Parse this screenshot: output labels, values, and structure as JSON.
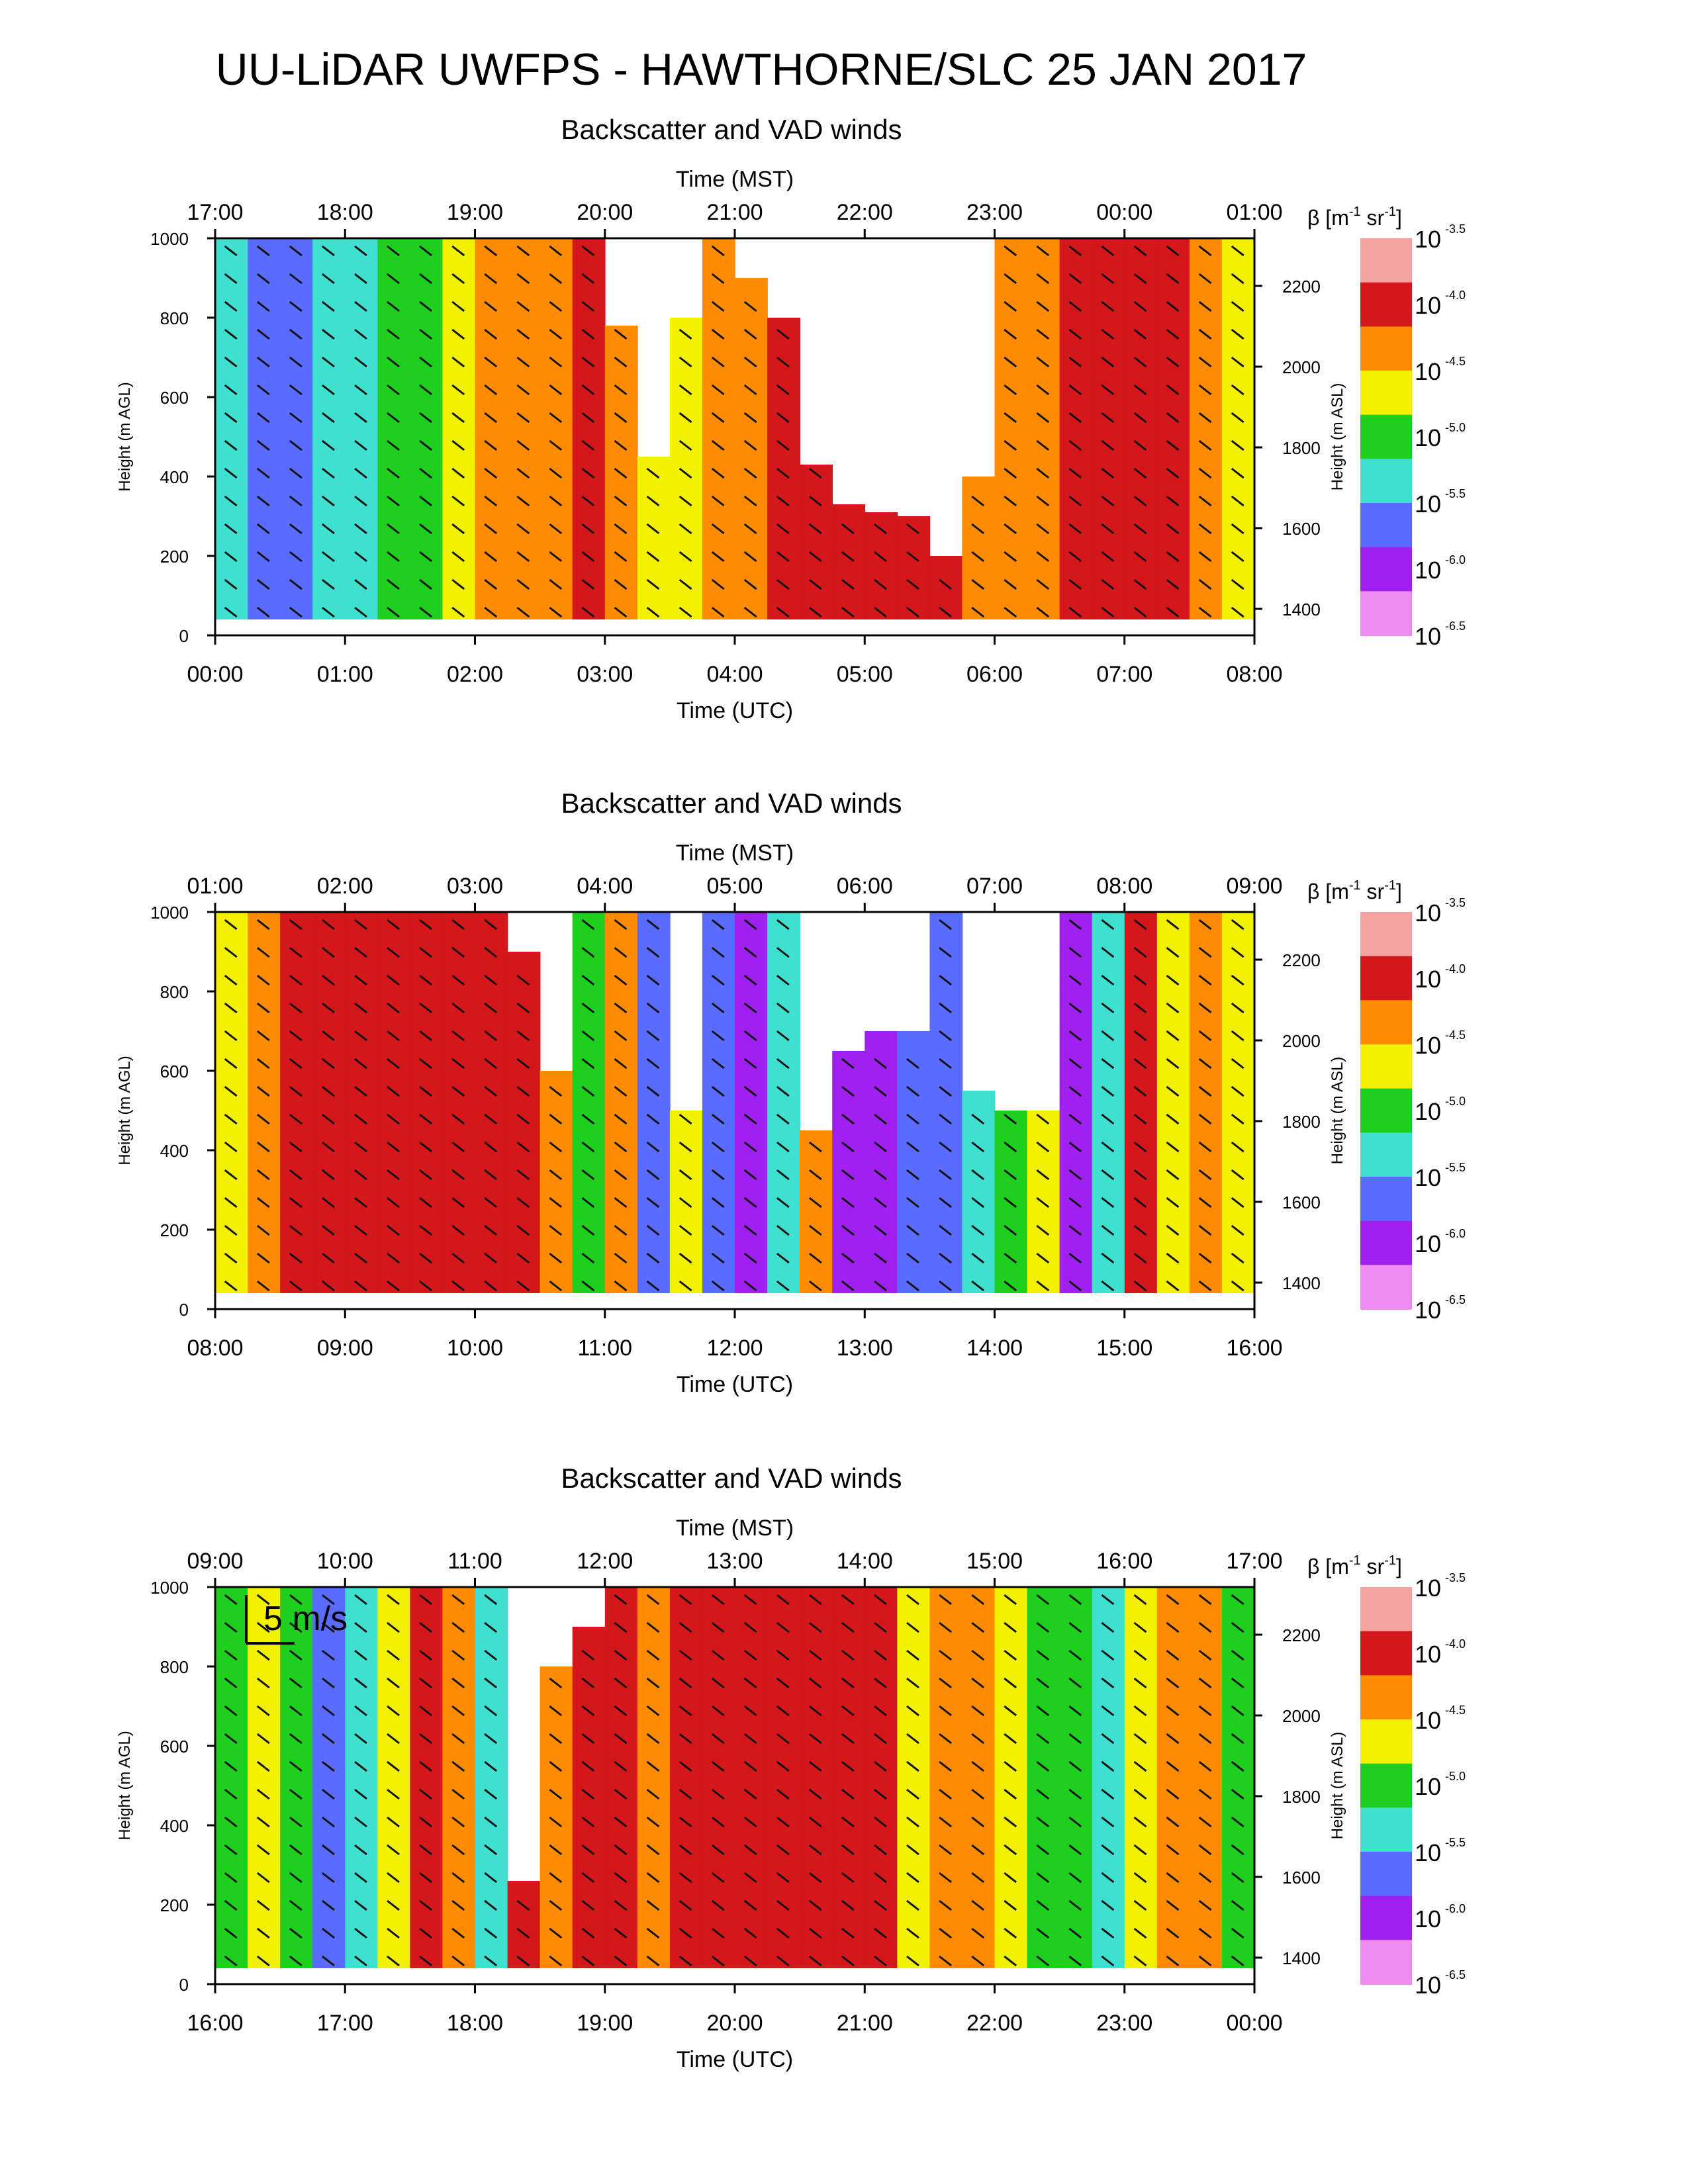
{
  "title": "UU-LiDAR UWFPS - HAWTHORNE/SLC 25 JAN 2017",
  "scale_arrow_label": "5 m/s",
  "colorbar": {
    "label_prefix": "β [m",
    "label_sup1": "-1",
    "label_mid": " sr",
    "label_sup2": "-1",
    "label_suffix": "]",
    "base": "10",
    "exponents": [
      "-3.5",
      "-4.0",
      "-4.5",
      "-5.0",
      "-5.5",
      "-6.0",
      "-6.5"
    ],
    "colors": [
      "#f4a3a0",
      "#d4171a",
      "#ff8c00",
      "#f2f200",
      "#1ecf1e",
      "#3fe0d0",
      "#5a6cff",
      "#a020f0",
      "#f08cf0"
    ]
  },
  "chart_data": [
    {
      "type": "heatmap",
      "title": "Backscatter and VAD winds",
      "xlabel": "Time (UTC)",
      "x2label": "Time (MST)",
      "ylabel": "Height (m AGL)",
      "y2label": "Height (m ASL)",
      "x_ticks": [
        "00:00",
        "01:00",
        "02:00",
        "03:00",
        "04:00",
        "05:00",
        "06:00",
        "07:00",
        "08:00"
      ],
      "x2_ticks": [
        "17:00",
        "18:00",
        "19:00",
        "20:00",
        "21:00",
        "22:00",
        "23:00",
        "00:00",
        "01:00"
      ],
      "y_ticks": [
        "0",
        "200",
        "400",
        "600",
        "800",
        "1000"
      ],
      "y2_ticks": [
        "1400",
        "1600",
        "1800",
        "2000",
        "2200"
      ],
      "ylim": [
        0,
        1000
      ],
      "grid": false,
      "columns": [
        {
          "x": 0.0,
          "top": 1000,
          "bottom": 40,
          "exp": -5.4
        },
        {
          "x": 0.25,
          "top": 1000,
          "bottom": 40,
          "exp": -5.6
        },
        {
          "x": 0.5,
          "top": 1000,
          "bottom": 40,
          "exp": -5.9
        },
        {
          "x": 0.75,
          "top": 1000,
          "bottom": 40,
          "exp": -5.5
        },
        {
          "x": 1.0,
          "top": 1000,
          "bottom": 40,
          "exp": -5.3
        },
        {
          "x": 1.25,
          "top": 1000,
          "bottom": 40,
          "exp": -5.1
        },
        {
          "x": 1.5,
          "top": 1000,
          "bottom": 40,
          "exp": -4.9
        },
        {
          "x": 1.75,
          "top": 1000,
          "bottom": 40,
          "exp": -4.5
        },
        {
          "x": 2.0,
          "top": 1000,
          "bottom": 40,
          "exp": -4.1
        },
        {
          "x": 2.25,
          "top": 1000,
          "bottom": 40,
          "exp": -4.2
        },
        {
          "x": 2.5,
          "top": 1000,
          "bottom": 40,
          "exp": -4.3
        },
        {
          "x": 2.75,
          "top": 1000,
          "bottom": 40,
          "exp": -4.0
        },
        {
          "x": 3.0,
          "top": 780,
          "bottom": 40,
          "exp": -4.4
        },
        {
          "x": 3.25,
          "top": 450,
          "bottom": 40,
          "exp": -4.6
        },
        {
          "x": 3.5,
          "top": 800,
          "bottom": 40,
          "exp": -4.8
        },
        {
          "x": 3.75,
          "top": 1000,
          "bottom": 40,
          "exp": -4.3
        },
        {
          "x": 4.0,
          "top": 900,
          "bottom": 40,
          "exp": -4.1
        },
        {
          "x": 4.25,
          "top": 800,
          "bottom": 40,
          "exp": -4.0
        },
        {
          "x": 4.5,
          "top": 430,
          "bottom": 40,
          "exp": -3.9
        },
        {
          "x": 4.75,
          "top": 330,
          "bottom": 40,
          "exp": -3.8
        },
        {
          "x": 5.0,
          "top": 310,
          "bottom": 40,
          "exp": -3.9
        },
        {
          "x": 5.25,
          "top": 300,
          "bottom": 40,
          "exp": -4.0
        },
        {
          "x": 5.5,
          "top": 200,
          "bottom": 40,
          "exp": -3.9
        },
        {
          "x": 5.75,
          "top": 400,
          "bottom": 40,
          "exp": -4.1
        },
        {
          "x": 6.0,
          "top": 1000,
          "bottom": 40,
          "exp": -4.3
        },
        {
          "x": 6.25,
          "top": 1000,
          "bottom": 40,
          "exp": -4.4
        },
        {
          "x": 6.5,
          "top": 1000,
          "bottom": 40,
          "exp": -3.9
        },
        {
          "x": 6.75,
          "top": 1000,
          "bottom": 40,
          "exp": -3.8
        },
        {
          "x": 7.0,
          "top": 1000,
          "bottom": 40,
          "exp": -3.9
        },
        {
          "x": 7.25,
          "top": 1000,
          "bottom": 40,
          "exp": -4.0
        },
        {
          "x": 7.5,
          "top": 1000,
          "bottom": 40,
          "exp": -4.2
        },
        {
          "x": 7.75,
          "top": 1000,
          "bottom": 40,
          "exp": -4.8
        }
      ]
    },
    {
      "type": "heatmap",
      "title": "Backscatter and VAD winds",
      "xlabel": "Time (UTC)",
      "x2label": "Time (MST)",
      "ylabel": "Height (m AGL)",
      "y2label": "Height (m ASL)",
      "x_ticks": [
        "08:00",
        "09:00",
        "10:00",
        "11:00",
        "12:00",
        "13:00",
        "14:00",
        "15:00",
        "16:00"
      ],
      "x2_ticks": [
        "01:00",
        "02:00",
        "03:00",
        "04:00",
        "05:00",
        "06:00",
        "07:00",
        "08:00",
        "09:00"
      ],
      "y_ticks": [
        "0",
        "200",
        "400",
        "600",
        "800",
        "1000"
      ],
      "y2_ticks": [
        "1400",
        "1600",
        "1800",
        "2000",
        "2200"
      ],
      "ylim": [
        0,
        1000
      ],
      "grid": false,
      "columns": [
        {
          "x": 8.0,
          "top": 1000,
          "bottom": 40,
          "exp": -4.7
        },
        {
          "x": 8.25,
          "top": 1000,
          "bottom": 40,
          "exp": -4.2
        },
        {
          "x": 8.5,
          "top": 1000,
          "bottom": 40,
          "exp": -4.0
        },
        {
          "x": 8.75,
          "top": 1000,
          "bottom": 40,
          "exp": -3.9
        },
        {
          "x": 9.0,
          "top": 1000,
          "bottom": 40,
          "exp": -3.8
        },
        {
          "x": 9.25,
          "top": 1000,
          "bottom": 40,
          "exp": -3.9
        },
        {
          "x": 9.5,
          "top": 1000,
          "bottom": 40,
          "exp": -3.8
        },
        {
          "x": 9.75,
          "top": 1000,
          "bottom": 40,
          "exp": -3.9
        },
        {
          "x": 10.0,
          "top": 1000,
          "bottom": 40,
          "exp": -3.8
        },
        {
          "x": 10.25,
          "top": 900,
          "bottom": 40,
          "exp": -4.0
        },
        {
          "x": 10.5,
          "top": 600,
          "bottom": 40,
          "exp": -4.3
        },
        {
          "x": 10.75,
          "top": 1000,
          "bottom": 40,
          "exp": -4.9
        },
        {
          "x": 11.0,
          "top": 1000,
          "bottom": 40,
          "exp": -4.4
        },
        {
          "x": 11.25,
          "top": 1000,
          "bottom": 40,
          "exp": -5.6
        },
        {
          "x": 11.5,
          "top": 500,
          "bottom": 40,
          "exp": -4.8
        },
        {
          "x": 11.75,
          "top": 1000,
          "bottom": 40,
          "exp": -5.9
        },
        {
          "x": 12.0,
          "top": 1000,
          "bottom": 40,
          "exp": -6.1
        },
        {
          "x": 12.25,
          "top": 1000,
          "bottom": 40,
          "exp": -5.4
        },
        {
          "x": 12.5,
          "top": 450,
          "bottom": 40,
          "exp": -4.3
        },
        {
          "x": 12.75,
          "top": 650,
          "bottom": 40,
          "exp": -6.0
        },
        {
          "x": 13.0,
          "top": 700,
          "bottom": 40,
          "exp": -6.2
        },
        {
          "x": 13.25,
          "top": 700,
          "bottom": 40,
          "exp": -5.9
        },
        {
          "x": 13.5,
          "top": 1000,
          "bottom": 40,
          "exp": -5.7
        },
        {
          "x": 13.75,
          "top": 550,
          "bottom": 40,
          "exp": -5.5
        },
        {
          "x": 14.0,
          "top": 500,
          "bottom": 40,
          "exp": -4.9
        },
        {
          "x": 14.25,
          "top": 500,
          "bottom": 40,
          "exp": -4.6
        },
        {
          "x": 14.5,
          "top": 1000,
          "bottom": 40,
          "exp": -6.1
        },
        {
          "x": 14.75,
          "top": 1000,
          "bottom": 40,
          "exp": -5.3
        },
        {
          "x": 15.0,
          "top": 1000,
          "bottom": 40,
          "exp": -4.0
        },
        {
          "x": 15.25,
          "top": 1000,
          "bottom": 40,
          "exp": -4.6
        },
        {
          "x": 15.5,
          "top": 1000,
          "bottom": 40,
          "exp": -4.2
        },
        {
          "x": 15.75,
          "top": 1000,
          "bottom": 40,
          "exp": -4.5
        }
      ]
    },
    {
      "type": "heatmap",
      "title": "Backscatter and VAD winds",
      "xlabel": "Time (UTC)",
      "x2label": "Time (MST)",
      "ylabel": "Height (m AGL)",
      "y2label": "Height (m ASL)",
      "x_ticks": [
        "16:00",
        "17:00",
        "18:00",
        "19:00",
        "20:00",
        "21:00",
        "22:00",
        "23:00",
        "00:00"
      ],
      "x2_ticks": [
        "09:00",
        "10:00",
        "11:00",
        "12:00",
        "13:00",
        "14:00",
        "15:00",
        "16:00",
        "17:00"
      ],
      "y_ticks": [
        "0",
        "200",
        "400",
        "600",
        "800",
        "1000"
      ],
      "y2_ticks": [
        "1400",
        "1600",
        "1800",
        "2000",
        "2200"
      ],
      "ylim": [
        0,
        1000
      ],
      "grid": false,
      "columns": [
        {
          "x": 16.0,
          "top": 1000,
          "bottom": 40,
          "exp": -4.9
        },
        {
          "x": 16.25,
          "top": 1000,
          "bottom": 40,
          "exp": -4.6
        },
        {
          "x": 16.5,
          "top": 1000,
          "bottom": 40,
          "exp": -5.1
        },
        {
          "x": 16.75,
          "top": 1000,
          "bottom": 40,
          "exp": -5.9
        },
        {
          "x": 17.0,
          "top": 1000,
          "bottom": 40,
          "exp": -5.3
        },
        {
          "x": 17.25,
          "top": 1000,
          "bottom": 40,
          "exp": -4.7
        },
        {
          "x": 17.5,
          "top": 1000,
          "bottom": 40,
          "exp": -4.0
        },
        {
          "x": 17.75,
          "top": 1000,
          "bottom": 40,
          "exp": -4.3
        },
        {
          "x": 18.0,
          "top": 1000,
          "bottom": 40,
          "exp": -5.3
        },
        {
          "x": 18.25,
          "top": 260,
          "bottom": 40,
          "exp": -4.0
        },
        {
          "x": 18.5,
          "top": 800,
          "bottom": 40,
          "exp": -4.1
        },
        {
          "x": 18.75,
          "top": 900,
          "bottom": 40,
          "exp": -3.9
        },
        {
          "x": 19.0,
          "top": 1000,
          "bottom": 40,
          "exp": -4.0
        },
        {
          "x": 19.25,
          "top": 1000,
          "bottom": 40,
          "exp": -4.2
        },
        {
          "x": 19.5,
          "top": 1000,
          "bottom": 40,
          "exp": -3.9
        },
        {
          "x": 19.75,
          "top": 1000,
          "bottom": 40,
          "exp": -3.8
        },
        {
          "x": 20.0,
          "top": 1000,
          "bottom": 40,
          "exp": -4.0
        },
        {
          "x": 20.25,
          "top": 1000,
          "bottom": 40,
          "exp": -3.9
        },
        {
          "x": 20.5,
          "top": 1000,
          "bottom": 40,
          "exp": -4.0
        },
        {
          "x": 20.75,
          "top": 1000,
          "bottom": 40,
          "exp": -3.9
        },
        {
          "x": 21.0,
          "top": 1000,
          "bottom": 40,
          "exp": -4.0
        },
        {
          "x": 21.25,
          "top": 1000,
          "bottom": 40,
          "exp": -4.6
        },
        {
          "x": 21.5,
          "top": 1000,
          "bottom": 40,
          "exp": -4.1
        },
        {
          "x": 21.75,
          "top": 1000,
          "bottom": 40,
          "exp": -4.3
        },
        {
          "x": 22.0,
          "top": 1000,
          "bottom": 40,
          "exp": -4.7
        },
        {
          "x": 22.25,
          "top": 1000,
          "bottom": 40,
          "exp": -5.1
        },
        {
          "x": 22.5,
          "top": 1000,
          "bottom": 40,
          "exp": -4.9
        },
        {
          "x": 22.75,
          "top": 1000,
          "bottom": 40,
          "exp": -5.2
        },
        {
          "x": 23.0,
          "top": 1000,
          "bottom": 40,
          "exp": -4.8
        },
        {
          "x": 23.25,
          "top": 1000,
          "bottom": 40,
          "exp": -4.2
        },
        {
          "x": 23.5,
          "top": 1000,
          "bottom": 40,
          "exp": -4.4
        },
        {
          "x": 23.75,
          "top": 1000,
          "bottom": 40,
          "exp": -5.0
        }
      ]
    }
  ]
}
